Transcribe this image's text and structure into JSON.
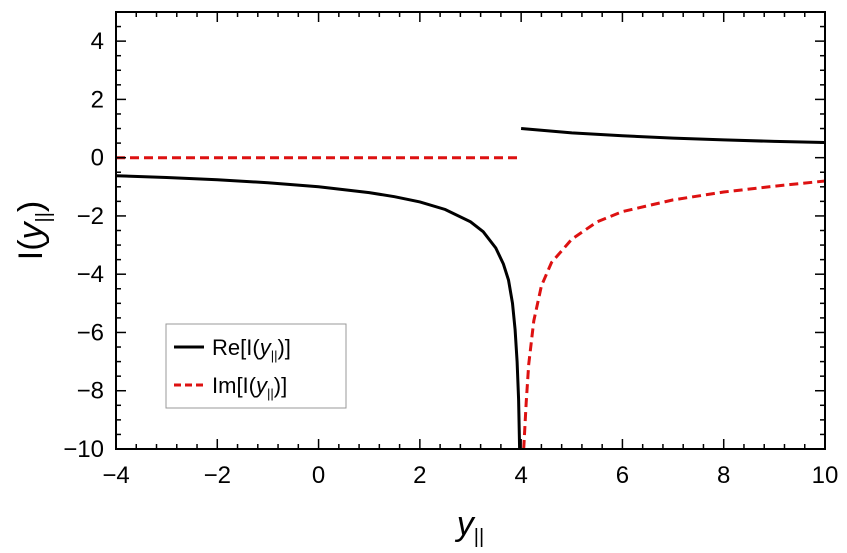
{
  "chart_data": {
    "type": "line",
    "xlabel": {
      "prefix": "",
      "var": "y",
      "sub": "||",
      "suffix": ""
    },
    "ylabel": {
      "prefix": "I(",
      "var": "y",
      "sub": "||",
      "suffix": ")"
    },
    "xlim": [
      -4,
      10
    ],
    "ylim": [
      -10,
      5
    ],
    "xticks": [
      -4,
      -2,
      0,
      2,
      4,
      6,
      8,
      10
    ],
    "xtick_labels": [
      "−4",
      "−2",
      "0",
      "2",
      "4",
      "6",
      "8",
      "10"
    ],
    "yticks": [
      4,
      2,
      0,
      -2,
      -4,
      -6,
      -8,
      -10
    ],
    "ytick_labels": [
      "4",
      "2",
      "0",
      "−2",
      "−4",
      "−6",
      "−8",
      "−10"
    ],
    "grid": false,
    "legend_position": "bottom-left",
    "series": [
      {
        "name": {
          "prefix": "Re[I(",
          "var": "y",
          "sub": "||",
          "suffix": ")]"
        },
        "color": "#000000",
        "style": "solid",
        "segments": [
          [
            [
              -4,
              -0.62
            ],
            [
              -3,
              -0.68
            ],
            [
              -2,
              -0.76
            ],
            [
              -1,
              -0.86
            ],
            [
              0,
              -1.0
            ],
            [
              1,
              -1.2
            ],
            [
              1.5,
              -1.34
            ],
            [
              2,
              -1.52
            ],
            [
              2.5,
              -1.78
            ],
            [
              3,
              -2.2
            ],
            [
              3.25,
              -2.54
            ],
            [
              3.5,
              -3.1
            ],
            [
              3.65,
              -3.65
            ],
            [
              3.75,
              -4.2
            ],
            [
              3.83,
              -5.0
            ],
            [
              3.88,
              -5.9
            ],
            [
              3.92,
              -7.0
            ],
            [
              3.95,
              -8.3
            ],
            [
              3.97,
              -10
            ]
          ],
          [
            [
              4,
              1.0
            ],
            [
              5,
              0.85
            ],
            [
              6,
              0.75
            ],
            [
              7,
              0.67
            ],
            [
              8,
              0.61
            ],
            [
              9,
              0.56
            ],
            [
              10,
              0.52
            ]
          ]
        ]
      },
      {
        "name": {
          "prefix": "Im[I(",
          "var": "y",
          "sub": "||",
          "suffix": ")]"
        },
        "color": "#dd1111",
        "style": "dashed",
        "segments": [
          [
            [
              -4,
              0
            ],
            [
              4,
              0
            ]
          ],
          [
            [
              4.05,
              -10
            ],
            [
              4.1,
              -8.4
            ],
            [
              4.15,
              -7.1
            ],
            [
              4.25,
              -5.6
            ],
            [
              4.4,
              -4.4
            ],
            [
              4.6,
              -3.6
            ],
            [
              5,
              -2.8
            ],
            [
              5.5,
              -2.2
            ],
            [
              6,
              -1.85
            ],
            [
              7,
              -1.45
            ],
            [
              8,
              -1.18
            ],
            [
              9,
              -0.98
            ],
            [
              10,
              -0.8
            ]
          ]
        ]
      }
    ]
  }
}
